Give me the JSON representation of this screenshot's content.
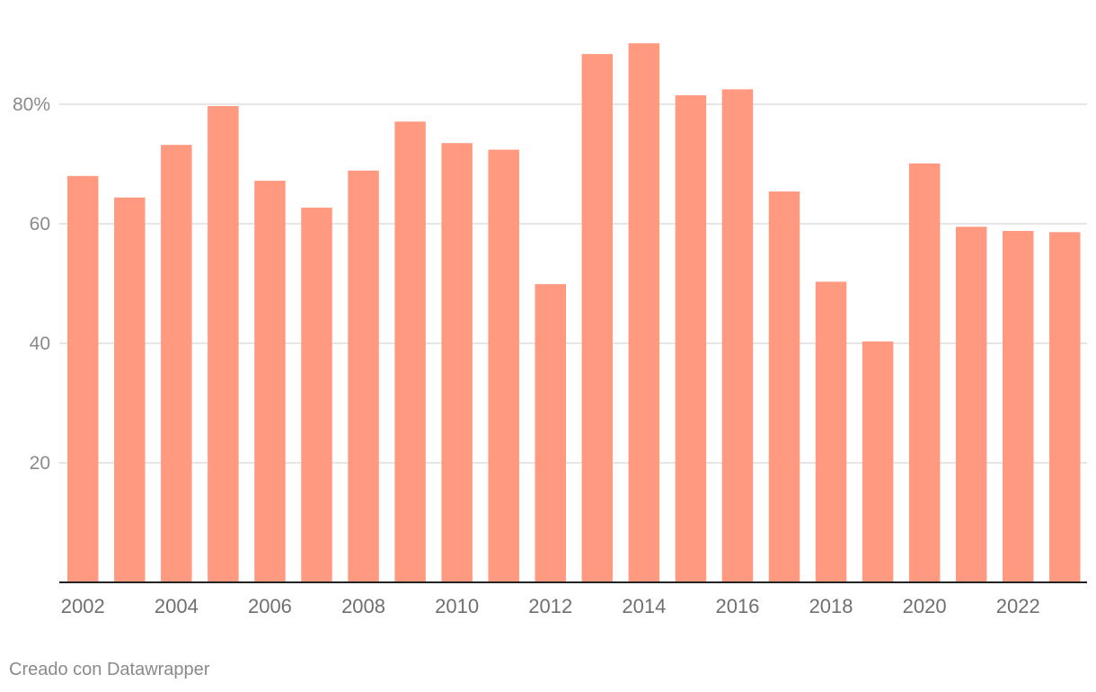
{
  "chart_data": {
    "type": "bar",
    "categories": [
      "2002",
      "2003",
      "2004",
      "2005",
      "2006",
      "2007",
      "2008",
      "2009",
      "2010",
      "2011",
      "2012",
      "2013",
      "2014",
      "2015",
      "2016",
      "2017",
      "2018",
      "2019",
      "2020",
      "2021",
      "2022",
      "2023"
    ],
    "values": [
      68.0,
      64.4,
      73.2,
      79.7,
      67.2,
      62.7,
      68.9,
      77.1,
      73.5,
      72.4,
      49.9,
      88.4,
      90.2,
      81.5,
      82.5,
      65.4,
      50.3,
      40.3,
      70.1,
      59.5,
      58.8,
      58.6
    ],
    "x_tick_labels": [
      "2002",
      "2004",
      "2006",
      "2008",
      "2010",
      "2012",
      "2014",
      "2016",
      "2018",
      "2020",
      "2022"
    ],
    "y_ticks": [
      20,
      40,
      60,
      80
    ],
    "y_tick_labels": [
      "20",
      "40",
      "60",
      "80%"
    ],
    "ylim": [
      0,
      92
    ],
    "grid": true,
    "bar_color": "#ff9a80"
  },
  "footer": {
    "credit": "Creado con Datawrapper"
  }
}
